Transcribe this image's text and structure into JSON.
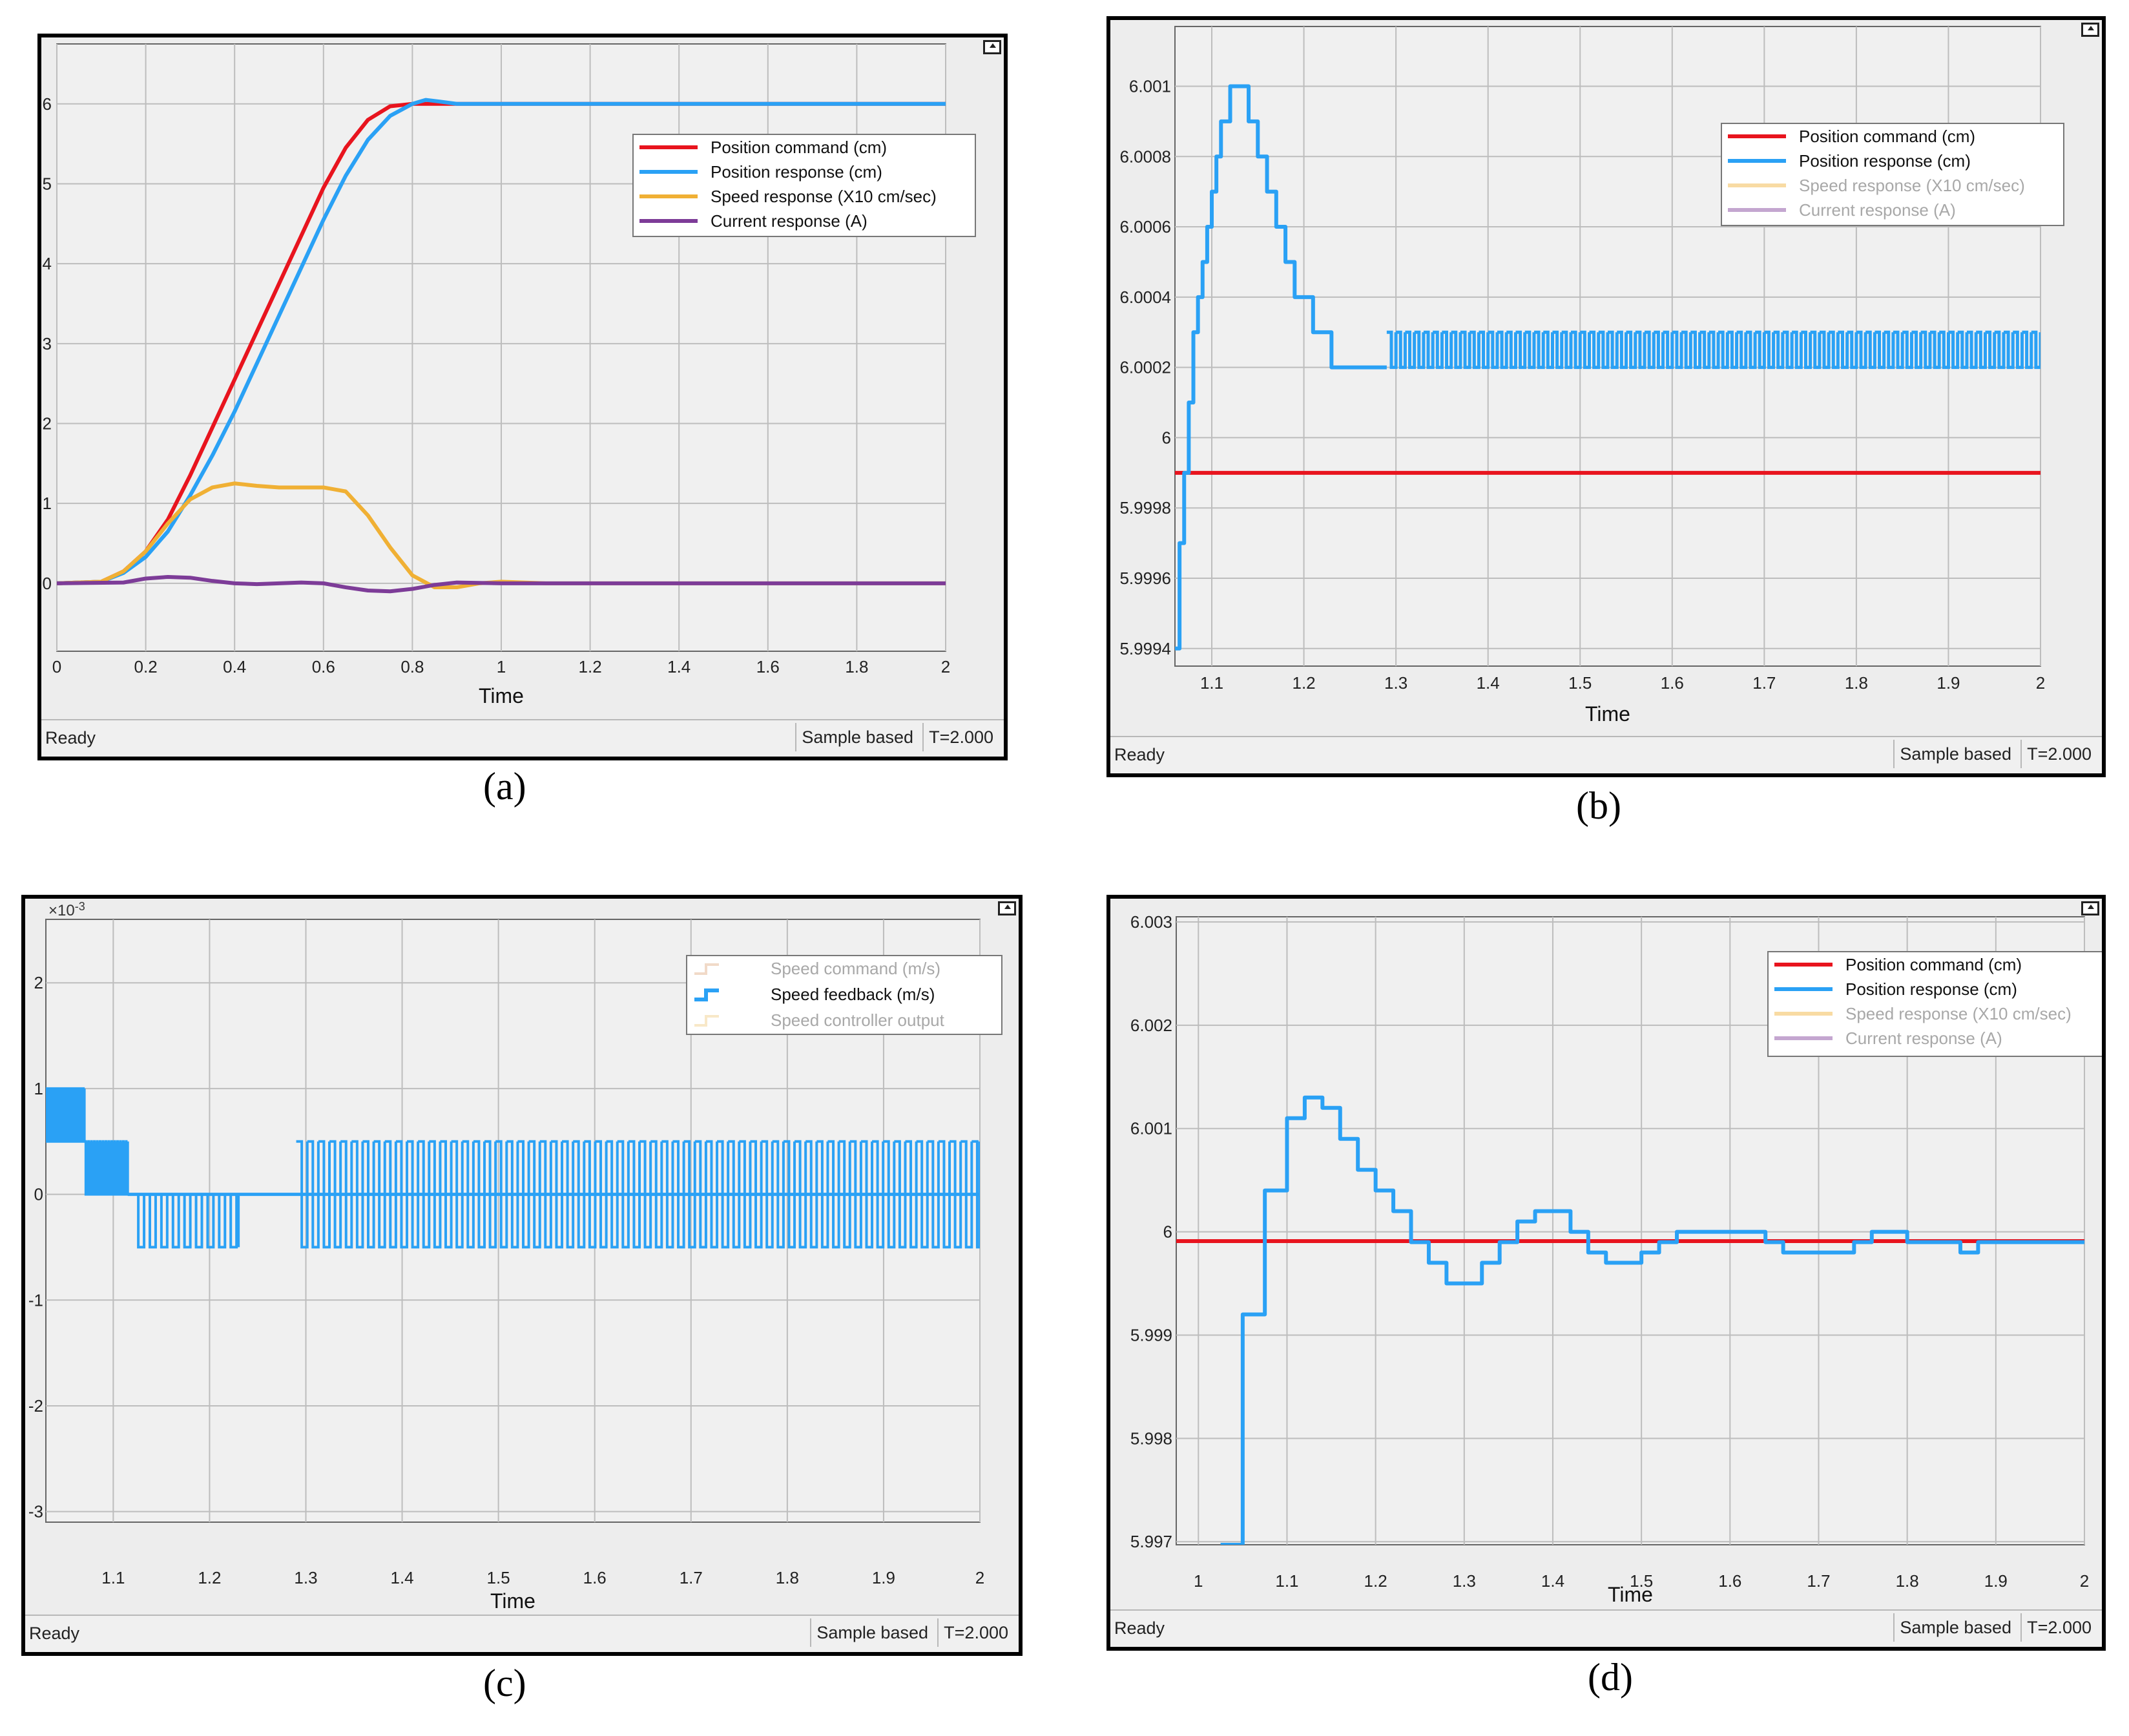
{
  "colors": {
    "position_command": "#e8141e",
    "position_response": "#2aa1f5",
    "speed_response": "#f0b034",
    "current_response": "#7d3c98",
    "speed_command": "#e0ae84",
    "speed_controller_output": "#f0cc84",
    "plot_bg": "#f0f0f0",
    "grid": "#bdbdbd"
  },
  "panels": [
    {
      "id": "a",
      "caption": "(a)",
      "status": "Ready",
      "sample_mode": "Sample based",
      "sim_time": "T=2.000",
      "chart_data": {
        "type": "line",
        "xlabel": "Time",
        "xlim": [
          0,
          2
        ],
        "ylim": [
          -0.85,
          6.75
        ],
        "xticks": [
          0,
          0.2,
          0.4,
          0.6,
          0.8,
          1,
          1.2,
          1.4,
          1.6,
          1.8,
          2
        ],
        "xtick_labels": [
          "0",
          "0.2",
          "0.4",
          "0.6",
          "0.8",
          "1",
          "1.2",
          "1.4",
          "1.6",
          "1.8",
          "2"
        ],
        "yticks": [
          0,
          1,
          2,
          3,
          4,
          5,
          6
        ],
        "ytick_labels": [
          "0",
          "1",
          "2",
          "3",
          "4",
          "5",
          "6"
        ],
        "legend_position": "top-right",
        "series": [
          {
            "name": "Position command (cm)",
            "color_key": "position_command",
            "dimmed": false,
            "x": [
              0,
              0.1,
              0.15,
              0.2,
              0.25,
              0.3,
              0.35,
              0.4,
              0.45,
              0.5,
              0.55,
              0.6,
              0.65,
              0.7,
              0.75,
              0.8,
              0.85,
              2
            ],
            "y": [
              0,
              0.02,
              0.15,
              0.4,
              0.8,
              1.35,
              1.95,
              2.55,
              3.15,
              3.75,
              4.35,
              4.95,
              5.45,
              5.8,
              5.97,
              6.0,
              6.0,
              6.0
            ]
          },
          {
            "name": "Position response (cm)",
            "color_key": "position_response",
            "dimmed": false,
            "x": [
              0,
              0.1,
              0.15,
              0.2,
              0.25,
              0.3,
              0.35,
              0.4,
              0.45,
              0.5,
              0.55,
              0.6,
              0.65,
              0.7,
              0.75,
              0.8,
              0.83,
              0.86,
              0.9,
              1.0,
              2
            ],
            "y": [
              0,
              0.02,
              0.13,
              0.33,
              0.65,
              1.1,
              1.6,
              2.15,
              2.75,
              3.35,
              3.95,
              4.55,
              5.1,
              5.55,
              5.85,
              6.0,
              6.05,
              6.03,
              6.0,
              6.0,
              6.0
            ]
          },
          {
            "name": "Speed response (X10 cm/sec)",
            "color_key": "speed_response",
            "dimmed": false,
            "x": [
              0,
              0.1,
              0.15,
              0.2,
              0.25,
              0.3,
              0.35,
              0.4,
              0.45,
              0.5,
              0.55,
              0.6,
              0.65,
              0.7,
              0.75,
              0.8,
              0.85,
              0.9,
              0.95,
              1.0,
              1.1,
              2
            ],
            "y": [
              0,
              0.02,
              0.15,
              0.4,
              0.75,
              1.05,
              1.2,
              1.25,
              1.22,
              1.2,
              1.2,
              1.2,
              1.15,
              0.85,
              0.45,
              0.1,
              -0.05,
              -0.05,
              0.0,
              0.02,
              0.0,
              0.0
            ]
          },
          {
            "name": "Current response (A)",
            "color_key": "current_response",
            "dimmed": false,
            "x": [
              0,
              0.15,
              0.2,
              0.25,
              0.3,
              0.35,
              0.4,
              0.45,
              0.5,
              0.55,
              0.6,
              0.65,
              0.7,
              0.75,
              0.8,
              0.85,
              0.9,
              1.0,
              2
            ],
            "y": [
              0,
              0.01,
              0.06,
              0.08,
              0.07,
              0.03,
              0.0,
              -0.01,
              0.0,
              0.01,
              0.0,
              -0.05,
              -0.09,
              -0.1,
              -0.07,
              -0.02,
              0.01,
              0.0,
              0.0
            ]
          }
        ]
      }
    },
    {
      "id": "b",
      "caption": "(b)",
      "status": "Ready",
      "sample_mode": "Sample based",
      "sim_time": "T=2.000",
      "chart_data": {
        "type": "line",
        "xlabel": "Time",
        "xlim": [
          1.06,
          2
        ],
        "ylim": [
          5.99935,
          6.00117
        ],
        "xticks": [
          1.1,
          1.2,
          1.3,
          1.4,
          1.5,
          1.6,
          1.7,
          1.8,
          1.9,
          2
        ],
        "xtick_labels": [
          "1.1",
          "1.2",
          "1.3",
          "1.4",
          "1.5",
          "1.6",
          "1.7",
          "1.8",
          "1.9",
          "2"
        ],
        "yticks": [
          5.9994,
          5.9996,
          5.9998,
          6.0,
          6.0002,
          6.0004,
          6.0006,
          6.0008,
          6.001
        ],
        "ytick_labels": [
          "5.9994",
          "5.9996",
          "5.9998",
          "6",
          "6.0002",
          "6.0004",
          "6.0006",
          "6.0008",
          "6.001"
        ],
        "legend_position": "top-right",
        "series": [
          {
            "name": "Position command (cm)",
            "color_key": "position_command",
            "dimmed": false,
            "x": [
              1.06,
              2
            ],
            "y": [
              5.9999,
              5.9999
            ]
          },
          {
            "name": "Position response (cm)",
            "color_key": "position_response",
            "dimmed": false,
            "x": [
              1.06,
              1.065,
              1.07,
              1.075,
              1.08,
              1.085,
              1.09,
              1.095,
              1.1,
              1.105,
              1.11,
              1.12,
              1.13,
              1.14,
              1.15,
              1.16,
              1.17,
              1.18,
              1.19,
              1.2,
              1.21,
              1.22,
              1.23,
              1.29
            ],
            "y": [
              5.9994,
              5.9997,
              5.9999,
              6.0001,
              6.0003,
              6.0004,
              6.0005,
              6.0006,
              6.0007,
              6.0008,
              6.0009,
              6.001,
              6.001,
              6.0009,
              6.0008,
              6.0007,
              6.0006,
              6.0005,
              6.0004,
              6.0004,
              6.0003,
              6.0003,
              6.0002,
              6.0002
            ],
            "step": true,
            "toggle": {
              "x_start": 1.29,
              "x_end": 2,
              "period": 0.01,
              "high": 6.0003,
              "low": 6.0002
            }
          },
          {
            "name": "Speed response (X10 cm/sec)",
            "color_key": "speed_response",
            "dimmed": true,
            "x": [],
            "y": []
          },
          {
            "name": "Current response (A)",
            "color_key": "current_response",
            "dimmed": true,
            "x": [],
            "y": []
          }
        ]
      }
    },
    {
      "id": "c",
      "caption": "(c)",
      "status": "Ready",
      "sample_mode": "Sample based",
      "sim_time": "T=2.000",
      "chart_data": {
        "type": "line",
        "xlabel": "Time",
        "y_exponent_label": "×10",
        "y_exponent_power": "-3",
        "xlim": [
          1.03,
          2
        ],
        "ylim": [
          -3.1,
          2.6
        ],
        "xticks": [
          1.1,
          1.2,
          1.3,
          1.4,
          1.5,
          1.6,
          1.7,
          1.8,
          1.9,
          2
        ],
        "xtick_labels": [
          "1.1",
          "1.2",
          "1.3",
          "1.4",
          "1.5",
          "1.6",
          "1.7",
          "1.8",
          "1.9",
          "2"
        ],
        "yticks": [
          -3,
          -2,
          -1,
          0,
          1,
          2
        ],
        "ytick_labels": [
          "-3",
          "-2",
          "-1",
          "0",
          "1",
          "2"
        ],
        "legend_position": "top-right",
        "series": [
          {
            "name": "Speed command (m/s)",
            "color_key": "speed_command",
            "dimmed": true,
            "x": [],
            "y": []
          },
          {
            "name": "Speed feedback (m/s)",
            "color_key": "position_response",
            "dimmed": false,
            "segments": [
              {
                "x_start": 1.03,
                "x_end": 1.07,
                "period": 0.002,
                "high": 1.0,
                "low": 0.5
              },
              {
                "x_start": 1.07,
                "x_end": 1.115,
                "period": 0.003,
                "high": 0.5,
                "low": 0.0
              },
              {
                "x_start": 1.12,
                "x_end": 1.23,
                "period": 0.012,
                "high": 0.0,
                "low": -0.5
              },
              {
                "x_start": 1.29,
                "x_end": 2.0,
                "period": 0.0115,
                "high": 0.5,
                "low": -0.5
              }
            ]
          },
          {
            "name": "Speed controller output",
            "color_key": "speed_controller_output",
            "dimmed": true,
            "x": [],
            "y": []
          }
        ]
      }
    },
    {
      "id": "d",
      "caption": "(d)",
      "status": "Ready",
      "sample_mode": "Sample based",
      "sim_time": "T=2.000",
      "chart_data": {
        "type": "line",
        "xlabel": "Time",
        "xlim": [
          0.975,
          2
        ],
        "ylim": [
          5.99697,
          6.00305
        ],
        "xticks": [
          1,
          1.1,
          1.2,
          1.3,
          1.4,
          1.5,
          1.6,
          1.7,
          1.8,
          1.9,
          2
        ],
        "xtick_labels": [
          "1",
          "1.1",
          "1.2",
          "1.3",
          "1.4",
          "1.5",
          "1.6",
          "1.7",
          "1.8",
          "1.9",
          "2"
        ],
        "yticks": [
          5.997,
          5.998,
          5.999,
          6.0,
          6.001,
          6.002,
          6.003
        ],
        "ytick_labels": [
          "5.997",
          "5.998",
          "5.999",
          "6",
          "6.001",
          "6.002",
          "6.003"
        ],
        "legend_position": "top-right",
        "series": [
          {
            "name": "Position command (cm)",
            "color_key": "position_command",
            "dimmed": false,
            "x": [
              0.975,
              2
            ],
            "y": [
              5.99991,
              5.99991
            ]
          },
          {
            "name": "Position response (cm)",
            "color_key": "position_response",
            "dimmed": false,
            "x": [
              1.025,
              1.05,
              1.075,
              1.1,
              1.12,
              1.14,
              1.16,
              1.18,
              1.2,
              1.22,
              1.24,
              1.26,
              1.28,
              1.3,
              1.32,
              1.34,
              1.36,
              1.38,
              1.4,
              1.42,
              1.44,
              1.46,
              1.48,
              1.5,
              1.52,
              1.54,
              1.58,
              1.62,
              1.64,
              1.66,
              1.7,
              1.74,
              1.76,
              1.78,
              1.8,
              1.86,
              1.88,
              1.9,
              2.0
            ],
            "y": [
              5.99697,
              5.9992,
              6.0004,
              6.0011,
              6.0013,
              6.0012,
              6.0009,
              6.0006,
              6.0004,
              6.0002,
              5.9999,
              5.9997,
              5.9995,
              5.9995,
              5.9997,
              5.9999,
              6.0001,
              6.0002,
              6.0002,
              6.0,
              5.9998,
              5.9997,
              5.9997,
              5.9998,
              5.9999,
              6.0,
              6.0,
              6.0,
              5.9999,
              5.9998,
              5.9998,
              5.9999,
              6.0,
              6.0,
              5.9999,
              5.9998,
              5.9999,
              5.9999,
              5.9999
            ],
            "step": true
          },
          {
            "name": "Speed response (X10 cm/sec)",
            "color_key": "speed_response",
            "dimmed": true,
            "x": [],
            "y": []
          },
          {
            "name": "Current response (A)",
            "color_key": "current_response",
            "dimmed": true,
            "x": [],
            "y": []
          }
        ]
      }
    }
  ]
}
